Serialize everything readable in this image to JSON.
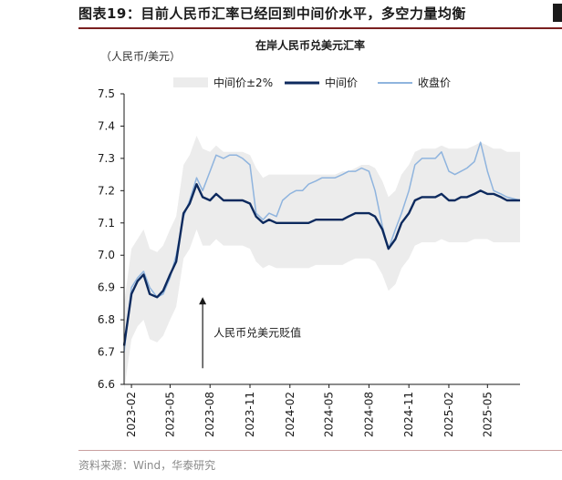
{
  "figure": {
    "label": "图表19：",
    "title": "目前人民币汇率已经回到中间价水平，多空力量均衡",
    "unit": "（人民币/美元）",
    "source": "资料来源：Wind，华泰研究"
  },
  "colors": {
    "band": "#ececec",
    "mid": "#0d2a5e",
    "close": "#8fb4de",
    "title_rule": "#7a1f1f"
  },
  "chart_data": {
    "type": "line",
    "title": "在岸人民币兑美元汇率",
    "ylim": [
      6.6,
      7.5
    ],
    "yticks": [
      6.6,
      6.7,
      6.8,
      6.9,
      7.0,
      7.1,
      7.2,
      7.3,
      7.4,
      7.5
    ],
    "ytick_labels": [
      "6.6",
      "6.7",
      "6.8",
      "6.9",
      "7.0",
      "7.1",
      "7.2",
      "7.3",
      "7.4",
      "7.5"
    ],
    "xlim": [
      "2023-01-15",
      "2025-07-15"
    ],
    "xticks": [
      "2023-02",
      "2023-05",
      "2023-08",
      "2023-11",
      "2024-02",
      "2024-05",
      "2024-08",
      "2024-11",
      "2025-02",
      "2025-05"
    ],
    "grid": false,
    "legend_position": "top",
    "x": [
      "2023-01-15",
      "2023-02-01",
      "2023-02-15",
      "2023-03-01",
      "2023-03-15",
      "2023-04-01",
      "2023-04-15",
      "2023-05-01",
      "2023-05-15",
      "2023-06-01",
      "2023-06-15",
      "2023-07-01",
      "2023-07-15",
      "2023-08-01",
      "2023-08-15",
      "2023-09-01",
      "2023-09-15",
      "2023-10-01",
      "2023-10-15",
      "2023-11-01",
      "2023-11-15",
      "2023-12-01",
      "2023-12-15",
      "2024-01-01",
      "2024-01-15",
      "2024-02-01",
      "2024-02-15",
      "2024-03-01",
      "2024-03-15",
      "2024-04-01",
      "2024-04-15",
      "2024-05-01",
      "2024-05-15",
      "2024-06-01",
      "2024-06-15",
      "2024-07-01",
      "2024-07-15",
      "2024-08-01",
      "2024-08-15",
      "2024-09-01",
      "2024-09-15",
      "2024-10-01",
      "2024-10-15",
      "2024-11-01",
      "2024-11-15",
      "2024-12-01",
      "2024-12-15",
      "2025-01-01",
      "2025-01-15",
      "2025-02-01",
      "2025-02-15",
      "2025-03-01",
      "2025-03-15",
      "2025-04-01",
      "2025-04-15",
      "2025-05-01",
      "2025-05-15",
      "2025-06-01",
      "2025-06-15",
      "2025-07-15"
    ],
    "series": [
      {
        "name": "中间价±2%",
        "kind": "band",
        "upper": [
          6.85,
          7.02,
          7.05,
          7.08,
          7.02,
          7.01,
          7.03,
          7.08,
          7.12,
          7.28,
          7.31,
          7.37,
          7.33,
          7.32,
          7.34,
          7.32,
          7.32,
          7.32,
          7.32,
          7.31,
          7.27,
          7.24,
          7.25,
          7.25,
          7.25,
          7.25,
          7.25,
          7.25,
          7.25,
          7.25,
          7.25,
          7.25,
          7.25,
          7.26,
          7.26,
          7.27,
          7.28,
          7.28,
          7.27,
          7.23,
          7.18,
          7.2,
          7.25,
          7.28,
          7.32,
          7.33,
          7.33,
          7.33,
          7.34,
          7.33,
          7.33,
          7.33,
          7.33,
          7.34,
          7.35,
          7.34,
          7.33,
          7.33,
          7.32,
          7.32
        ],
        "lower": [
          6.58,
          6.74,
          6.78,
          6.8,
          6.74,
          6.73,
          6.75,
          6.8,
          6.84,
          6.99,
          7.02,
          7.08,
          7.03,
          7.03,
          7.05,
          7.03,
          7.03,
          7.03,
          7.03,
          7.02,
          6.98,
          6.96,
          6.97,
          6.96,
          6.96,
          6.96,
          6.96,
          6.96,
          6.96,
          6.97,
          6.97,
          6.97,
          6.97,
          6.97,
          6.98,
          6.99,
          6.99,
          6.99,
          6.98,
          6.94,
          6.89,
          6.91,
          6.96,
          6.99,
          7.03,
          7.04,
          7.04,
          7.04,
          7.05,
          7.04,
          7.04,
          7.04,
          7.04,
          7.05,
          7.05,
          7.05,
          7.04,
          7.04,
          7.04,
          7.04
        ]
      },
      {
        "name": "中间价",
        "kind": "line",
        "values": [
          6.72,
          6.88,
          6.92,
          6.94,
          6.88,
          6.87,
          6.89,
          6.94,
          6.98,
          7.13,
          7.16,
          7.22,
          7.18,
          7.17,
          7.19,
          7.17,
          7.17,
          7.17,
          7.17,
          7.16,
          7.12,
          7.1,
          7.11,
          7.1,
          7.1,
          7.1,
          7.1,
          7.1,
          7.1,
          7.11,
          7.11,
          7.11,
          7.11,
          7.11,
          7.12,
          7.13,
          7.13,
          7.13,
          7.12,
          7.08,
          7.02,
          7.05,
          7.1,
          7.13,
          7.17,
          7.18,
          7.18,
          7.18,
          7.19,
          7.17,
          7.17,
          7.18,
          7.18,
          7.19,
          7.2,
          7.19,
          7.19,
          7.18,
          7.17,
          7.17
        ]
      },
      {
        "name": "收盘价",
        "kind": "line",
        "values": [
          6.7,
          6.9,
          6.93,
          6.95,
          6.9,
          6.87,
          6.88,
          6.93,
          7.0,
          7.12,
          7.17,
          7.24,
          7.2,
          7.26,
          7.31,
          7.3,
          7.31,
          7.31,
          7.3,
          7.28,
          7.13,
          7.11,
          7.13,
          7.12,
          7.17,
          7.19,
          7.2,
          7.2,
          7.22,
          7.23,
          7.24,
          7.24,
          7.24,
          7.25,
          7.26,
          7.26,
          7.27,
          7.26,
          7.2,
          7.09,
          7.02,
          7.08,
          7.13,
          7.2,
          7.28,
          7.3,
          7.3,
          7.3,
          7.32,
          7.26,
          7.25,
          7.26,
          7.27,
          7.29,
          7.35,
          7.26,
          7.2,
          7.19,
          7.18,
          7.17
        ]
      }
    ],
    "annotations": [
      {
        "text": "人民币兑美元贬值",
        "x": "2023-07-15",
        "y_from": 6.65,
        "y_to": 6.87
      }
    ]
  }
}
